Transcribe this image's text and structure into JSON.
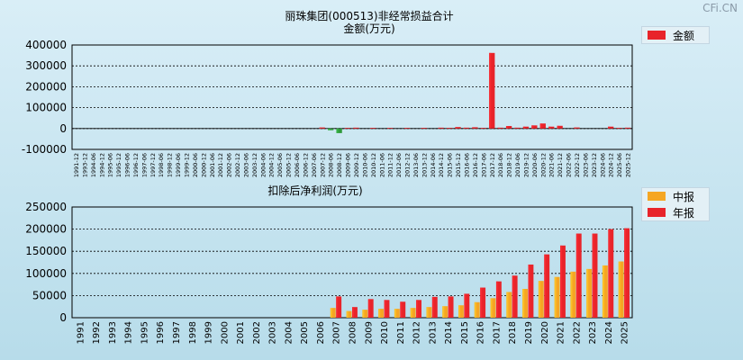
{
  "watermark": "CFi.CN",
  "chart_data": [
    {
      "type": "bar",
      "title": "丽珠集团(000513)非经常损益合计",
      "subtitle": "金额(万元)",
      "ylim": [
        -100000,
        400000
      ],
      "yticks": [
        -100000,
        0,
        100000,
        200000,
        300000,
        400000
      ],
      "ytick_labels": [
        "-100000",
        "0",
        "100000",
        "200000",
        "300000",
        "400000"
      ],
      "grid": true,
      "legend_position": "top-right",
      "categories": [
        "1991-12",
        "1993-12",
        "1994-06",
        "1994-12",
        "1995-06",
        "1995-12",
        "1996-06",
        "1996-12",
        "1997-06",
        "1997-12",
        "1998-06",
        "1998-12",
        "1999-06",
        "1999-12",
        "2000-06",
        "2000-12",
        "2001-06",
        "2001-12",
        "2002-06",
        "2002-12",
        "2003-06",
        "2003-12",
        "2004-06",
        "2004-12",
        "2005-06",
        "2005-12",
        "2006-06",
        "2006-12",
        "2007-06",
        "2007-12",
        "2008-06",
        "2008-12",
        "2009-06",
        "2009-12",
        "2010-06",
        "2010-12",
        "2011-06",
        "2011-12",
        "2012-06",
        "2012-12",
        "2013-06",
        "2013-12",
        "2014-06",
        "2014-12",
        "2015-06",
        "2015-12",
        "2016-06",
        "2016-12",
        "2017-06",
        "2017-12",
        "2018-06",
        "2018-12",
        "2019-06",
        "2019-12",
        "2020-06",
        "2020-12",
        "2021-06",
        "2021-12",
        "2022-06",
        "2022-12",
        "2023-06",
        "2023-12",
        "2024-06",
        "2024-12",
        "2025-06",
        "2025-12"
      ],
      "series": [
        {
          "name": "金额",
          "color": "#e8242a",
          "negative_color": "#2e9a3a",
          "values": [
            0,
            0,
            0,
            0,
            0,
            0,
            0,
            0,
            0,
            0,
            0,
            0,
            0,
            0,
            0,
            0,
            0,
            0,
            0,
            0,
            0,
            0,
            0,
            0,
            0,
            0,
            0,
            0,
            2000,
            5000,
            -8000,
            -22000,
            3000,
            4000,
            2000,
            3000,
            2000,
            3000,
            2000,
            3000,
            2000,
            3000,
            2000,
            4000,
            3000,
            7000,
            4000,
            6000,
            3000,
            362000,
            4000,
            12000,
            4000,
            9000,
            15000,
            24000,
            9000,
            13000,
            2000,
            5000,
            2000,
            2000,
            2000,
            9000,
            3000,
            4000
          ]
        }
      ]
    },
    {
      "type": "bar",
      "title": "扣除后净利润(万元)",
      "ylim": [
        0,
        250000
      ],
      "yticks": [
        0,
        50000,
        100000,
        150000,
        200000,
        250000
      ],
      "ytick_labels": [
        "0",
        "50000",
        "100000",
        "150000",
        "200000",
        "250000"
      ],
      "grid": true,
      "legend_position": "top-right",
      "categories": [
        "1991",
        "1992",
        "1993",
        "1994",
        "1995",
        "1996",
        "1997",
        "1998",
        "1999",
        "2000",
        "2001",
        "2002",
        "2003",
        "2004",
        "2005",
        "2006",
        "2007",
        "2008",
        "2009",
        "2010",
        "2011",
        "2012",
        "2013",
        "2014",
        "2015",
        "2016",
        "2017",
        "2018",
        "2019",
        "2020",
        "2021",
        "2022",
        "2023",
        "2024",
        "2025"
      ],
      "series": [
        {
          "name": "中报",
          "color": "#f5a623",
          "values": [
            0,
            0,
            0,
            0,
            0,
            0,
            0,
            0,
            0,
            0,
            0,
            0,
            0,
            0,
            0,
            0,
            22000,
            15000,
            18000,
            20000,
            20000,
            22000,
            24000,
            26000,
            28000,
            35000,
            44000,
            58000,
            65000,
            83000,
            92000,
            104000,
            110000,
            118000,
            127000
          ]
        },
        {
          "name": "年报",
          "color": "#e8242a",
          "values": [
            0,
            0,
            0,
            0,
            0,
            0,
            0,
            0,
            0,
            0,
            0,
            0,
            0,
            0,
            0,
            0,
            48000,
            24000,
            42000,
            40000,
            36000,
            40000,
            47000,
            48000,
            54000,
            68000,
            82000,
            95000,
            120000,
            143000,
            163000,
            190000,
            190000,
            200000,
            202000
          ]
        }
      ]
    }
  ]
}
